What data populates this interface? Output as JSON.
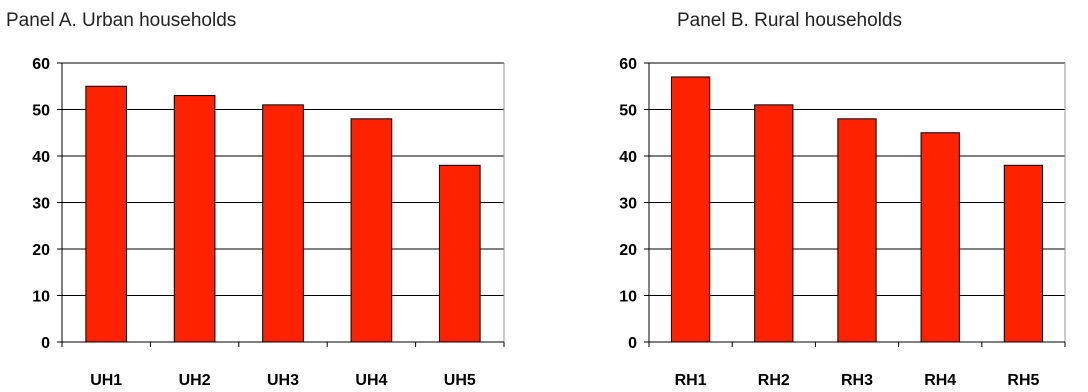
{
  "chart_data": [
    {
      "type": "bar",
      "title": "Panel A. Urban households",
      "xlabel": "",
      "ylabel": "",
      "categories": [
        "UH1",
        "UH2",
        "UH3",
        "UH4",
        "UH5"
      ],
      "values": [
        55,
        53,
        51,
        48,
        38
      ],
      "ylim": [
        0,
        60
      ],
      "yticks": [
        0,
        10,
        20,
        30,
        40,
        50,
        60
      ],
      "grid": true,
      "bar_color": "#ff2200",
      "legend": "none"
    },
    {
      "type": "bar",
      "title": "Panel B. Rural households",
      "xlabel": "",
      "ylabel": "",
      "categories": [
        "RH1",
        "RH2",
        "RH3",
        "RH4",
        "RH5"
      ],
      "values": [
        57,
        51,
        48,
        45,
        38
      ],
      "ylim": [
        0,
        60
      ],
      "yticks": [
        0,
        10,
        20,
        30,
        40,
        50,
        60
      ],
      "grid": true,
      "bar_color": "#ff2200",
      "legend": "none"
    }
  ]
}
